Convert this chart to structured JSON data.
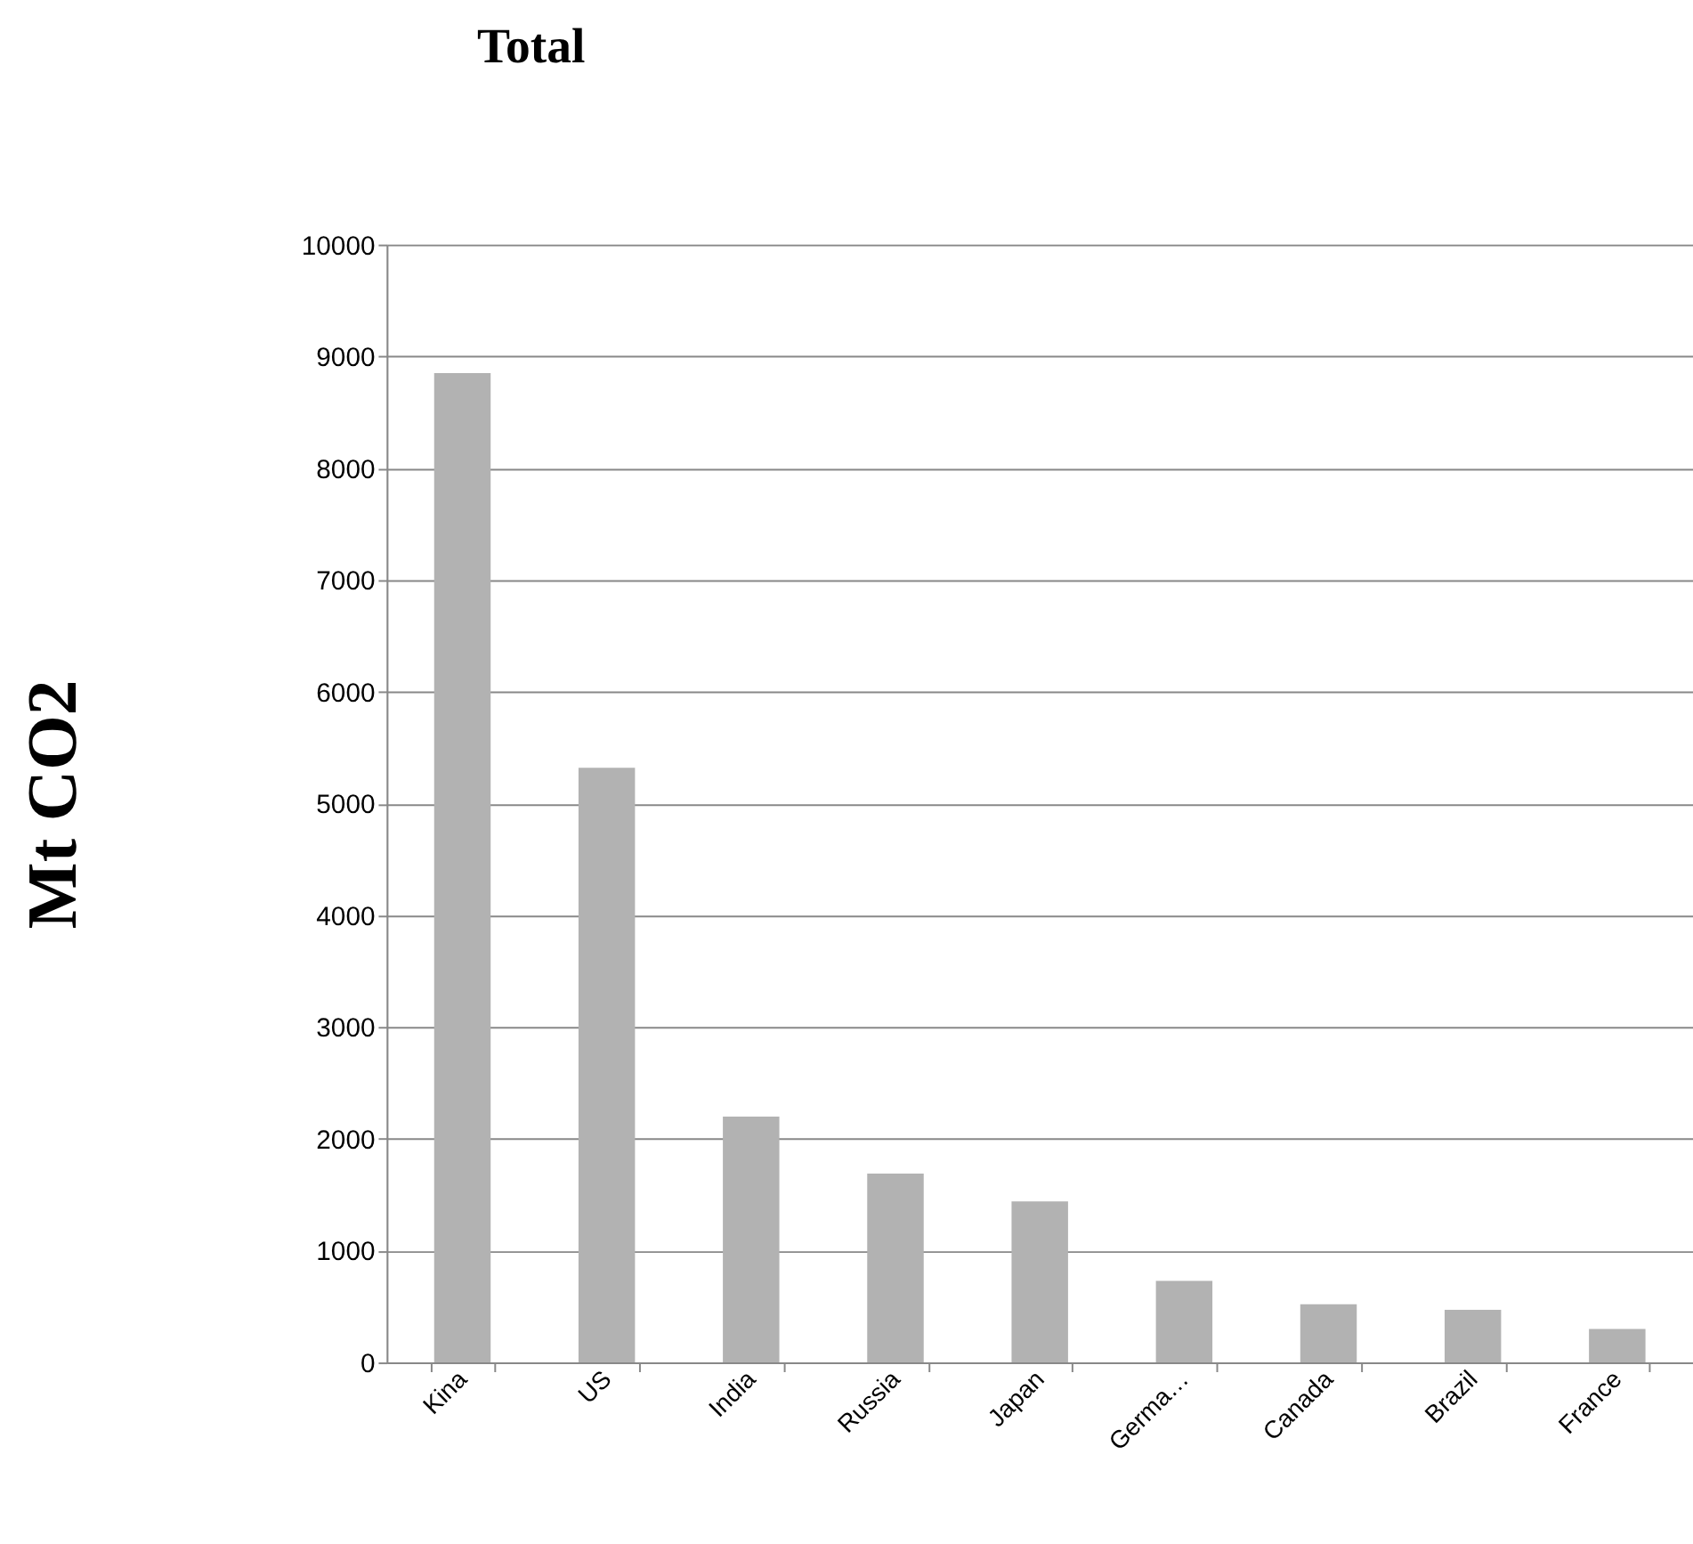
{
  "chart_data": {
    "type": "bar",
    "title": "Total",
    "ylabel": "Mt CO2",
    "categories": [
      "Kina",
      "US",
      "India",
      "Russia",
      "Japan",
      "Germa…",
      "Canada",
      "Brazil",
      "France"
    ],
    "values": [
      8850,
      5320,
      2200,
      1690,
      1440,
      730,
      520,
      470,
      300
    ],
    "color": "#b2b2b2",
    "ylim": [
      0,
      10000
    ],
    "yticks": [
      0,
      1000,
      2000,
      3000,
      4000,
      5000,
      6000,
      7000,
      8000,
      9000,
      10000
    ],
    "grid": "y"
  }
}
